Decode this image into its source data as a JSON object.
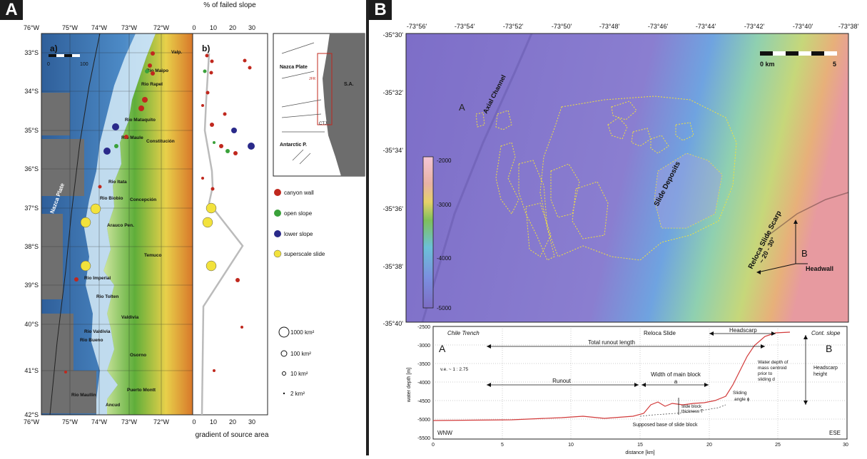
{
  "panelA": {
    "label": "A",
    "map": {
      "sub_label": "a)",
      "lon_ticks": [
        "76°W",
        "75°W",
        "74°W",
        "73°W",
        "72°W"
      ],
      "lat_ticks": [
        "33°S",
        "34°S",
        "35°S",
        "36°S",
        "37°S",
        "38°S",
        "39°S",
        "40°S",
        "41°S",
        "42°S"
      ],
      "scale_labels": [
        "0",
        "100"
      ],
      "places": [
        "Valp.",
        "Rio Maipo",
        "Rio Rapel",
        "Rio Mataquito",
        "Rio Maule",
        "Constitución",
        "Rio Itata",
        "Rio Biobio",
        "Concepción",
        "Arauco Pen.",
        "Temuco",
        "Rio Imperial",
        "Rio Tolten",
        "Valdivia",
        "Rio Valdivia",
        "Rio Bueno",
        "Osorno",
        "Rio Maullin",
        "Puerto Montt",
        "Ancud"
      ],
      "plate_label": "Nazca Plate"
    },
    "profile": {
      "sub_label": "b)",
      "top_axis_title": "% of failed slope",
      "top_ticks": [
        "0",
        "10",
        "20",
        "30"
      ],
      "bottom_ticks": [
        "0",
        "10",
        "20",
        "30"
      ],
      "bottom_axis_title": "gradient of source area"
    },
    "inset": {
      "labels": [
        "Nazca Plate",
        "S.A.",
        "CTJ",
        "Antarctic P.",
        "JFR"
      ]
    },
    "legend": {
      "items": [
        {
          "label": "canyon wall",
          "color": "#c0281e"
        },
        {
          "label": "open slope",
          "color": "#3aa13a"
        },
        {
          "label": "lower slope",
          "color": "#2a2a8a"
        },
        {
          "label": "superscale slide",
          "color": "#f2e23c"
        }
      ],
      "sizes": [
        "1000 km²",
        "100 km²",
        "10 km²",
        "2 km²"
      ]
    }
  },
  "panelB": {
    "label": "B",
    "lon_ticks": [
      "-73°56'",
      "-73°54'",
      "-73°52'",
      "-73°50'",
      "-73°48'",
      "-73°46'",
      "-73°44'",
      "-73°42'",
      "-73°40'",
      "-73°38'"
    ],
    "lat_ticks": [
      "-35°30'",
      "-35°32'",
      "-35°34'",
      "-35°36'",
      "-35°38'",
      "-35°40'"
    ],
    "scale": {
      "left": "0 km",
      "right": "5"
    },
    "colorbar_ticks": [
      "-2000",
      "-3000",
      "-4000",
      "-5000"
    ],
    "labels": {
      "axial": "Axial Channel",
      "slide_deposits": "Slide Deposits",
      "scarp": "Reloca Slide Scarp",
      "scarp_angle": "~ 20 - 30°",
      "headwall": "Headwall",
      "point_a": "A",
      "point_b": "B"
    },
    "profile": {
      "y_ticks": [
        "-2500",
        "-3000",
        "-3500",
        "-4000",
        "-4500",
        "-5000",
        "-5500"
      ],
      "x_ticks": [
        "0",
        "5",
        "10",
        "15",
        "20",
        "25",
        "30"
      ],
      "y_title": "water depth [m]",
      "x_title": "distance [km]",
      "top_labels": [
        "Chile Trench",
        "Reloca Slide",
        "Headscarp",
        "Cont. slope"
      ],
      "point_a": "A",
      "point_b": "B",
      "total_runout": "Total runout length",
      "ve": "v.e. ~ 1 : 2.75",
      "runout": "Runout",
      "width_main": "Width of main block",
      "width_sym": "a",
      "water_depth_note": [
        "Water depth of",
        "mass centroid",
        "prior to",
        "sliding d"
      ],
      "headscarp_height": [
        "Headscarp",
        "height"
      ],
      "sliding_angle": [
        "Sliding",
        "angle ϕ"
      ],
      "slide_thickness": [
        "slide block",
        "thickness T"
      ],
      "supposed_base": "Supposed base of slide block",
      "wnw": "WNW",
      "ese": "ESE"
    }
  }
}
